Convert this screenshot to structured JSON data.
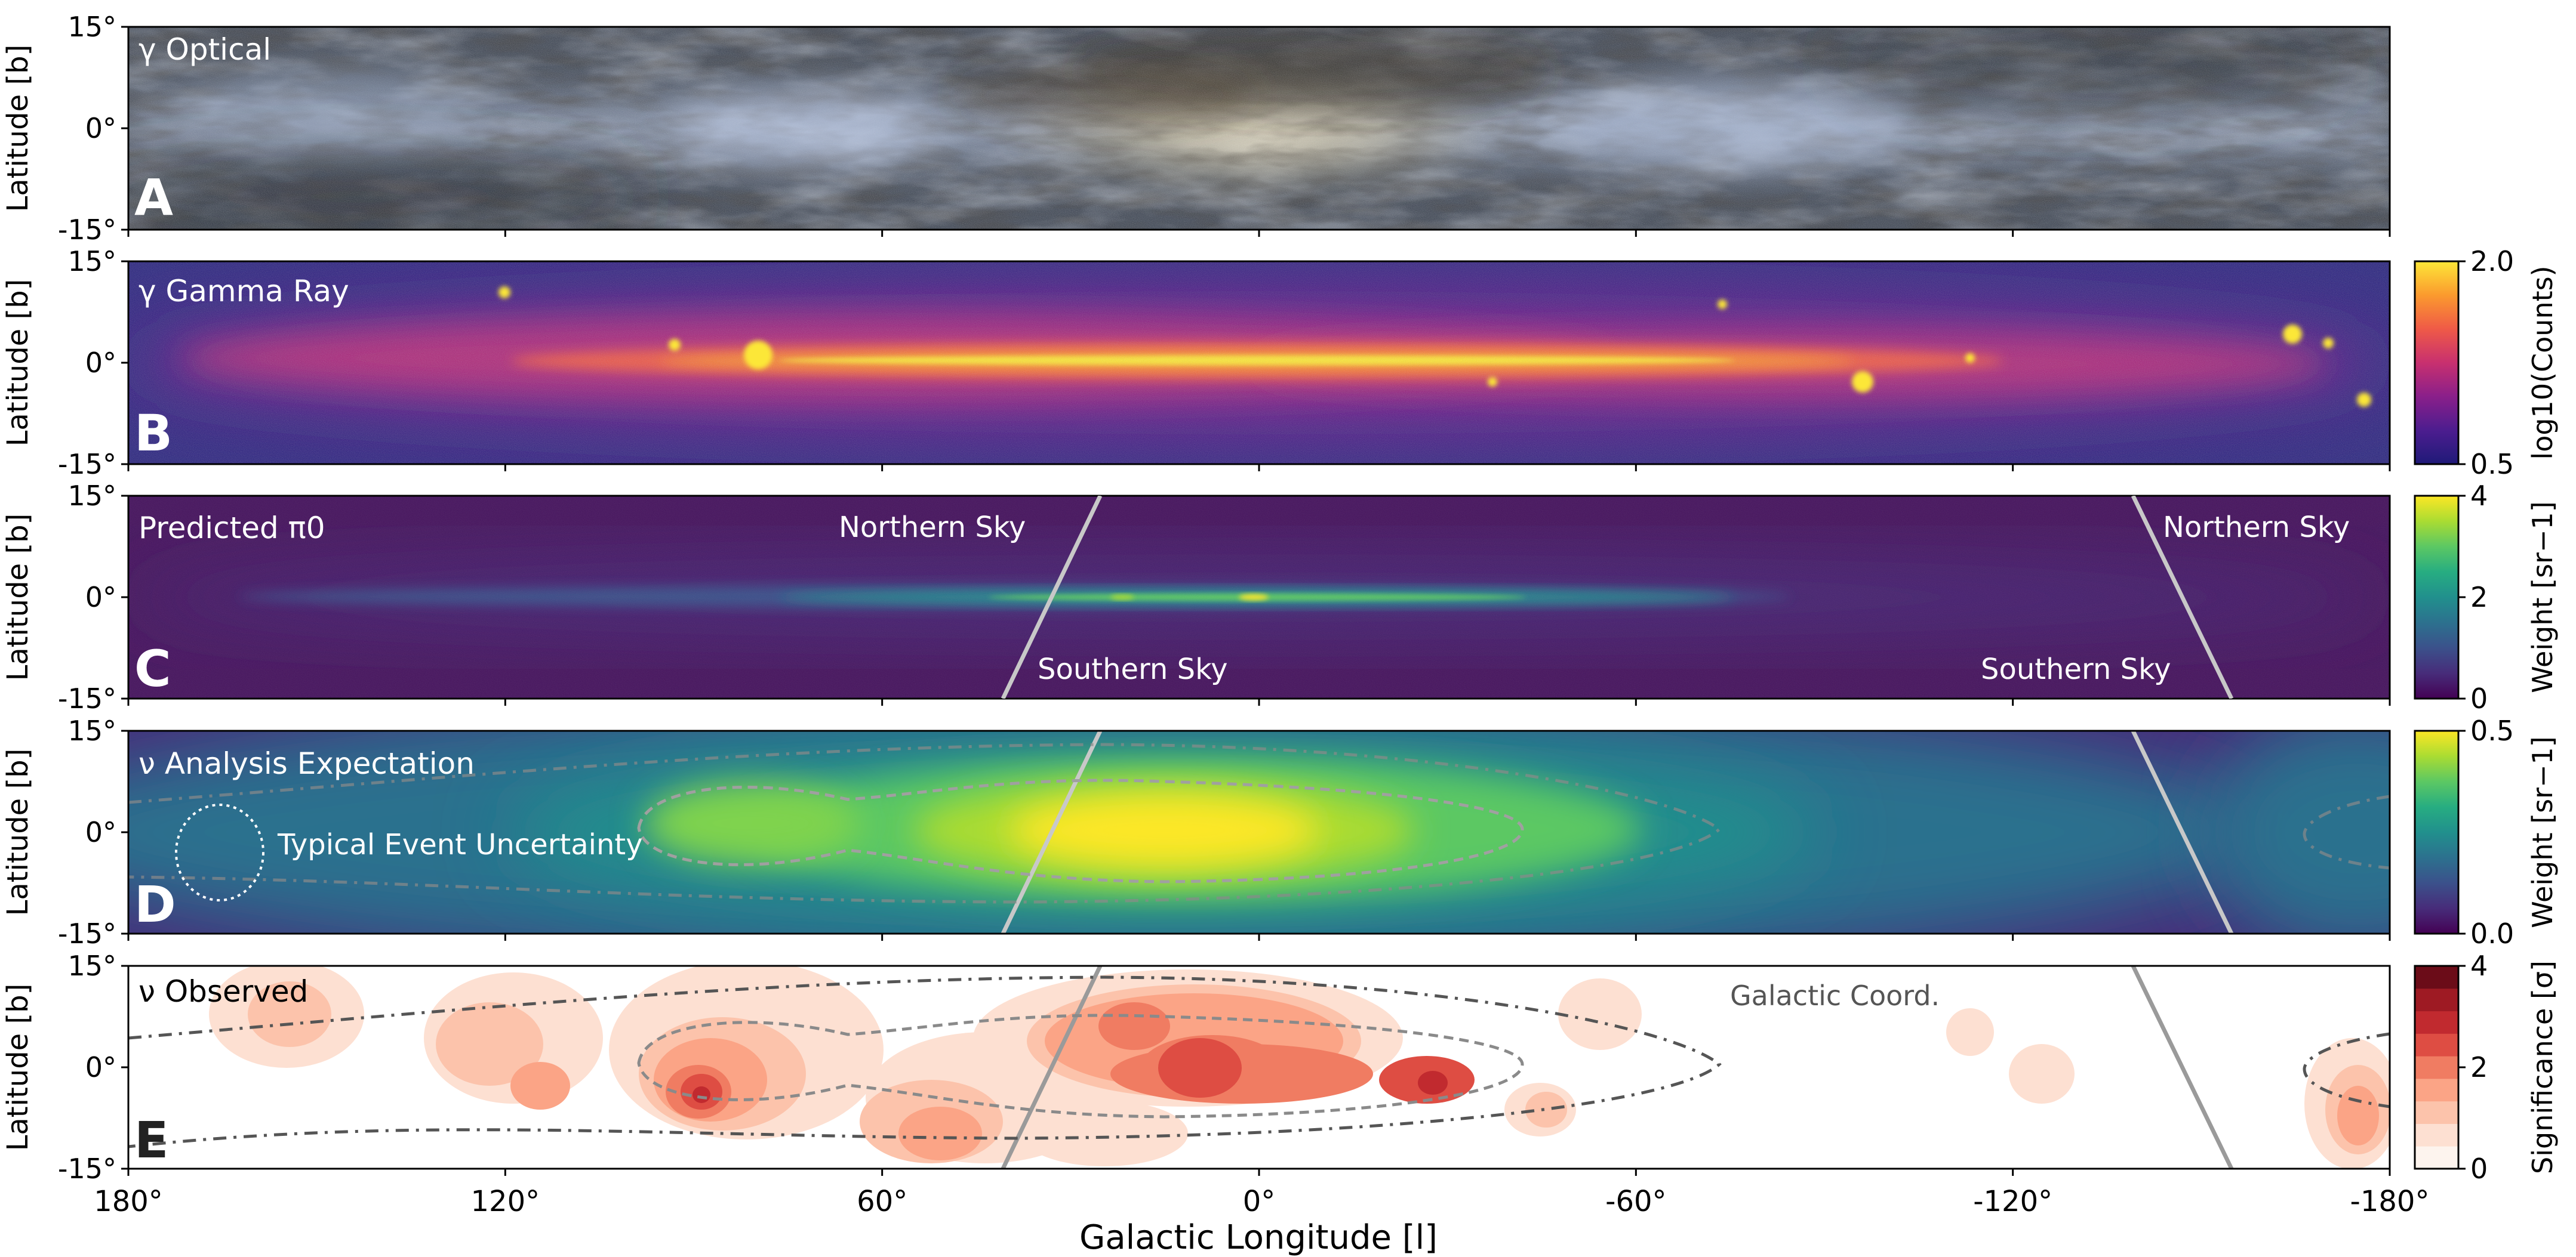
{
  "chart_data": {
    "type": "heatmap",
    "x_axis": {
      "label": "Galactic Longitude [l]",
      "range": [
        180,
        -180
      ],
      "ticks": [
        180,
        120,
        60,
        0,
        -60,
        -120,
        -180
      ],
      "tick_labels": [
        "180°",
        "120°",
        "60°",
        "0°",
        "-60°",
        "-120°",
        "-180°"
      ]
    },
    "y_axis": {
      "label": "Latitude [b]",
      "range": [
        -15,
        15
      ],
      "tick_labels": [
        "15°",
        "0°",
        "-15°"
      ]
    },
    "panels": [
      {
        "letter": "A",
        "title": "γ Optical"
      },
      {
        "letter": "B",
        "title": "γ Gamma Ray",
        "colorbar": {
          "label": "log10(Counts)",
          "ticks": [
            "2.0",
            "0.5"
          ],
          "range": [
            0.5,
            2.0
          ]
        }
      },
      {
        "letter": "C",
        "title": "Predicted π0",
        "colorbar": {
          "label": "Weight [sr−1]",
          "ticks": [
            "4",
            "2",
            "0"
          ],
          "range": [
            0,
            4
          ]
        },
        "annotations": [
          "Northern Sky",
          "Southern Sky",
          "Northern Sky",
          "Southern Sky"
        ]
      },
      {
        "letter": "D",
        "title": "ν Analysis Expectation",
        "colorbar": {
          "label": "Weight [sr−1]",
          "ticks": [
            "0.5",
            "0.0"
          ],
          "range": [
            0.0,
            0.5
          ]
        },
        "annotations": [
          "Typical Event Uncertainty"
        ]
      },
      {
        "letter": "E",
        "title": "ν Observed",
        "colorbar": {
          "label": "Significance [σ]",
          "ticks": [
            "4",
            "2",
            "0"
          ],
          "range": [
            0,
            4
          ]
        },
        "annotations": [
          "Galactic Coord."
        ]
      }
    ]
  },
  "colors": {
    "gamma": [
      "#1f1a78",
      "#4c1d8f",
      "#8a1f8a",
      "#c8306f",
      "#ef5a47",
      "#fb9a2e",
      "#fce738"
    ],
    "viridis": [
      "#440154",
      "#472c7a",
      "#3b518b",
      "#2c718e",
      "#21908d",
      "#27ad81",
      "#5cc863",
      "#aadc32",
      "#fde725"
    ],
    "significance": [
      "#fdf4ee",
      "#fde0d2",
      "#fcc3ab",
      "#fba486",
      "#f07c62",
      "#de4d43",
      "#c12a2f",
      "#9e1a23",
      "#6b0c18"
    ]
  }
}
